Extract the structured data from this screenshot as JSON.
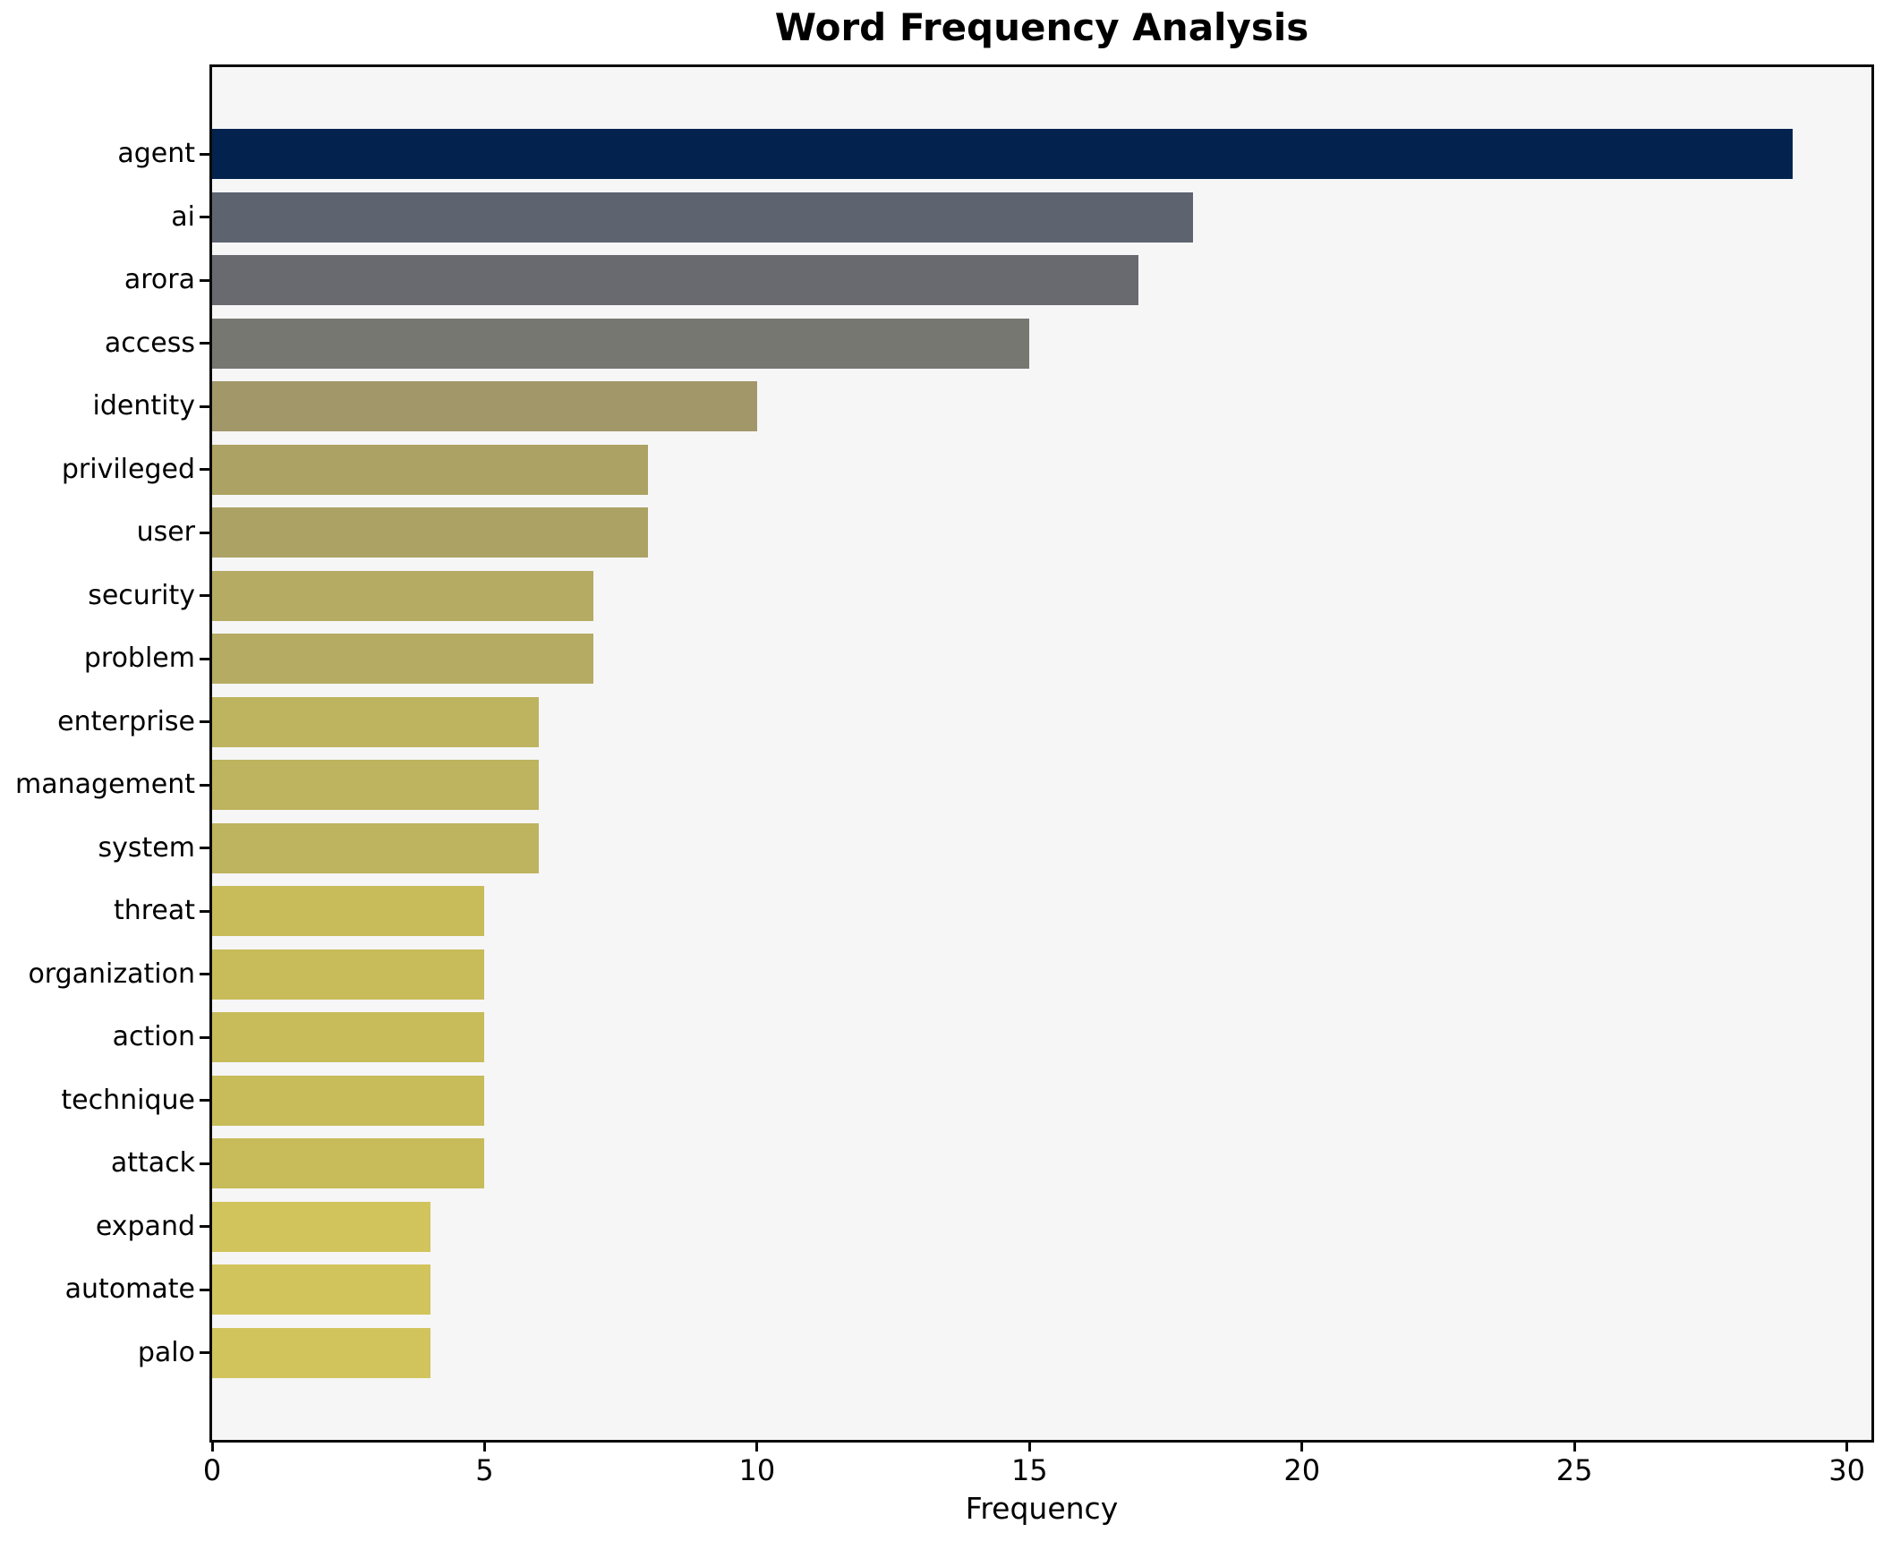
{
  "title": "Word Frequency Analysis",
  "chart_data": {
    "type": "bar",
    "orientation": "horizontal",
    "title": "Word Frequency Analysis",
    "xlabel": "Frequency",
    "ylabel": "",
    "categories": [
      "agent",
      "ai",
      "arora",
      "access",
      "identity",
      "privileged",
      "user",
      "security",
      "problem",
      "enterprise",
      "management",
      "system",
      "threat",
      "organization",
      "action",
      "technique",
      "attack",
      "expand",
      "automate",
      "palo"
    ],
    "values": [
      29,
      18,
      17,
      15,
      10,
      8,
      8,
      7,
      7,
      6,
      6,
      6,
      5,
      5,
      5,
      5,
      5,
      4,
      4,
      4
    ],
    "bar_colors": [
      "#03234e",
      "#5e6370",
      "#696a70",
      "#777772",
      "#a19769",
      "#aca263",
      "#aca263",
      "#b5ab62",
      "#b5ab62",
      "#beb35e",
      "#beb35e",
      "#beb35e",
      "#c8bb5a",
      "#c8bb5a",
      "#c8bb5a",
      "#c8bb5a",
      "#c8bb5a",
      "#d2c45c",
      "#d2c45c",
      "#d2c45c"
    ],
    "xlim": [
      0,
      30.45
    ],
    "xticks": [
      0,
      5,
      10,
      15,
      20,
      25,
      30
    ],
    "grid": false,
    "legend": null,
    "colormap": "cividis-reversed-by-value",
    "colors": {
      "figure_background": "#ffffff",
      "axes_background": "#f6f6f7",
      "spine": "#0a0a0a",
      "text": "#000000"
    }
  }
}
